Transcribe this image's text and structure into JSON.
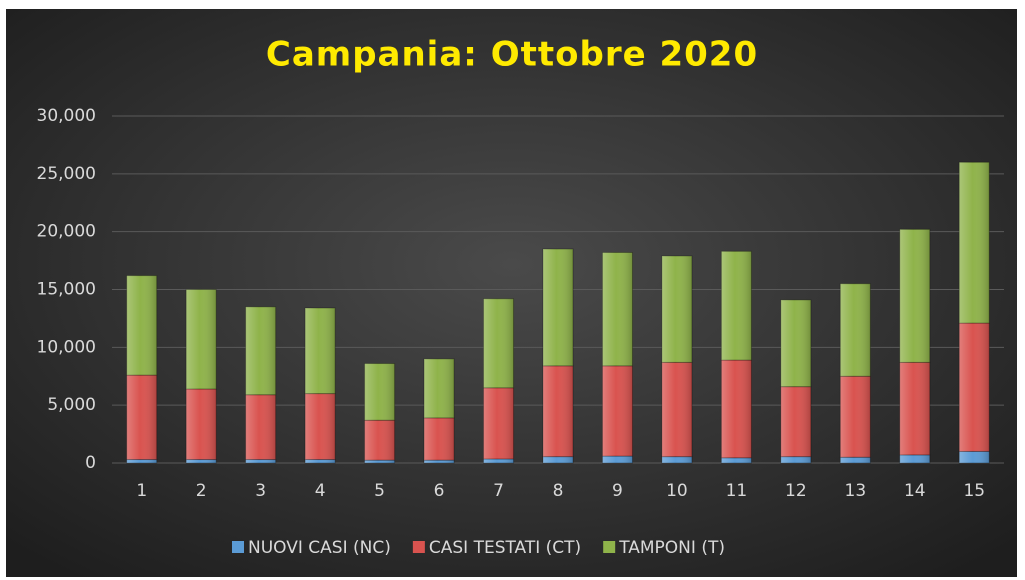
{
  "chart_data": {
    "type": "stacked_bar",
    "title": "Campania: Ottobre 2020",
    "categories": [
      "1",
      "2",
      "3",
      "4",
      "5",
      "6",
      "7",
      "8",
      "9",
      "10",
      "11",
      "12",
      "13",
      "14",
      "15"
    ],
    "series": [
      {
        "name": "NUOVI CASI (NC)",
        "color": "#5b9bd5",
        "values": [
          300,
          300,
          300,
          300,
          250,
          250,
          350,
          550,
          600,
          550,
          450,
          550,
          500,
          700,
          1000
        ]
      },
      {
        "name": "CASI TESTATI (CT)",
        "color": "#d9534f",
        "values": [
          7300,
          6100,
          5600,
          5700,
          3450,
          3650,
          6150,
          7850,
          7800,
          8150,
          8450,
          6050,
          7000,
          8000,
          11100
        ]
      },
      {
        "name": "TAMPONI (T)",
        "color": "#8fb34a",
        "values": [
          8600,
          8600,
          7600,
          7400,
          4900,
          5100,
          7700,
          10100,
          9800,
          9200,
          9400,
          7500,
          8000,
          11500,
          13900
        ]
      }
    ],
    "ylim": [
      0,
      30000
    ],
    "yticks": [
      0,
      {
        "value": 5000,
        "label": "5,000"
      },
      {
        "value": 10000,
        "label": "10,000"
      },
      {
        "value": 15000,
        "label": "15,000"
      },
      {
        "value": 20000,
        "label": "20,000"
      },
      {
        "value": 25000,
        "label": "25,000"
      },
      {
        "value": 30000,
        "label": "30,000"
      }
    ],
    "grid": true,
    "legend": "bottom"
  }
}
